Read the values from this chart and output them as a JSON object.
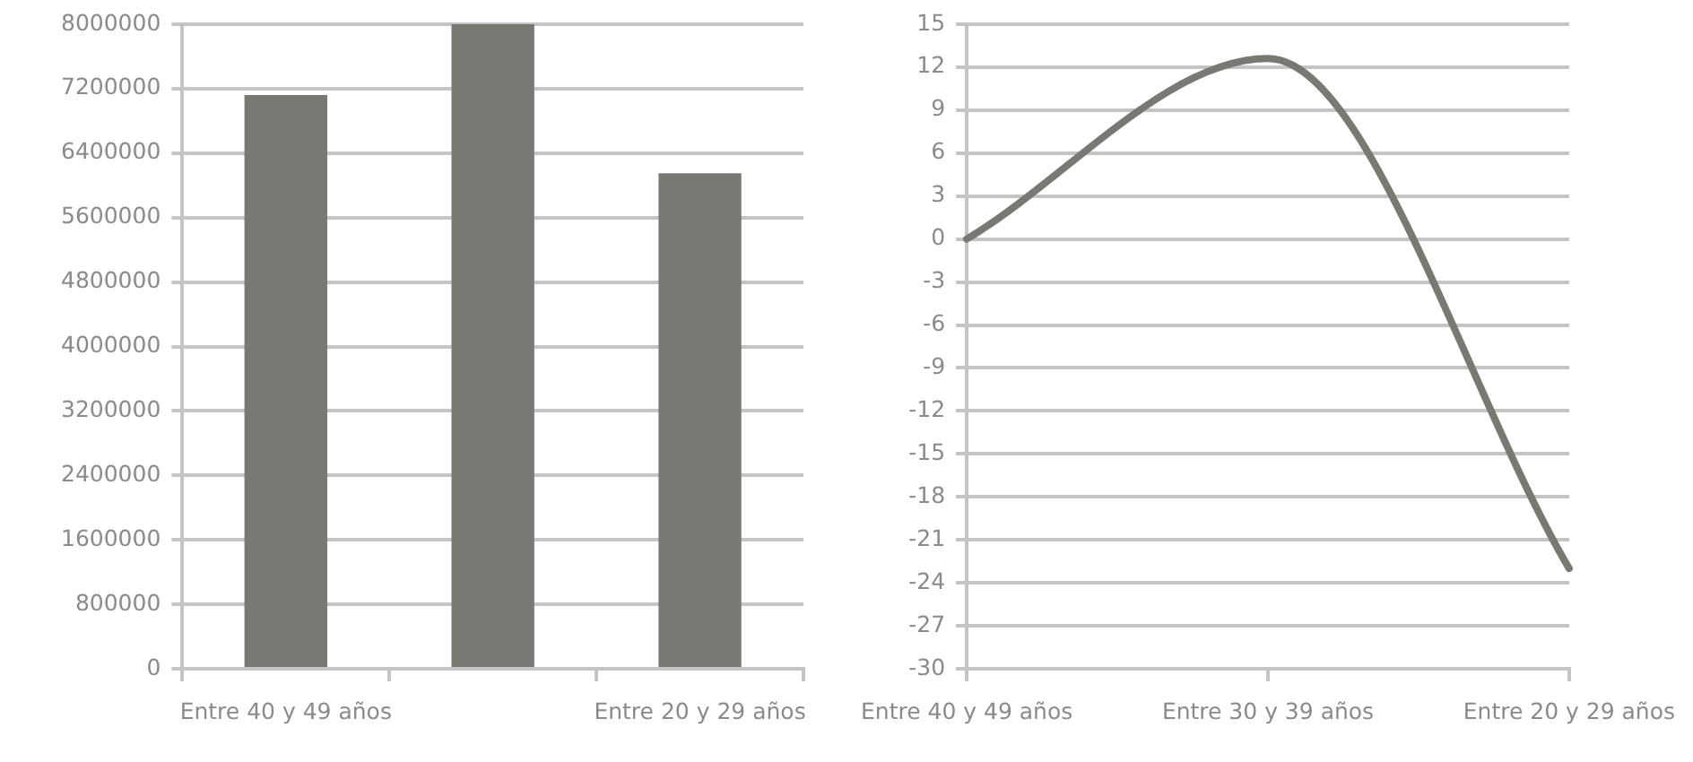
{
  "chart_data": [
    {
      "type": "bar",
      "categories": [
        "Entre 40 y 49 años",
        null,
        "Entre 20 y 29 años"
      ],
      "values": [
        7120000,
        8000000,
        6150000
      ],
      "color": "#767a72",
      "ylim": [
        0,
        8000000
      ],
      "yticks": [
        0,
        800000,
        1600000,
        2400000,
        3200000,
        4000000,
        4800000,
        5600000,
        6400000,
        7200000,
        8000000
      ],
      "grid": "y"
    },
    {
      "type": "line",
      "categories": [
        "Entre 40 y 49 años",
        "Entre 30 y 39 años",
        "Entre 20 y 29 años"
      ],
      "values": [
        0,
        12.6,
        -23
      ],
      "color": "#767a72",
      "ylim": [
        -30,
        15
      ],
      "yticks": [
        -30,
        -27,
        -24,
        -21,
        -18,
        -15,
        -12,
        -9,
        -6,
        -3,
        0,
        3,
        6,
        9,
        12,
        15
      ],
      "grid": "y",
      "marker": "none"
    }
  ]
}
